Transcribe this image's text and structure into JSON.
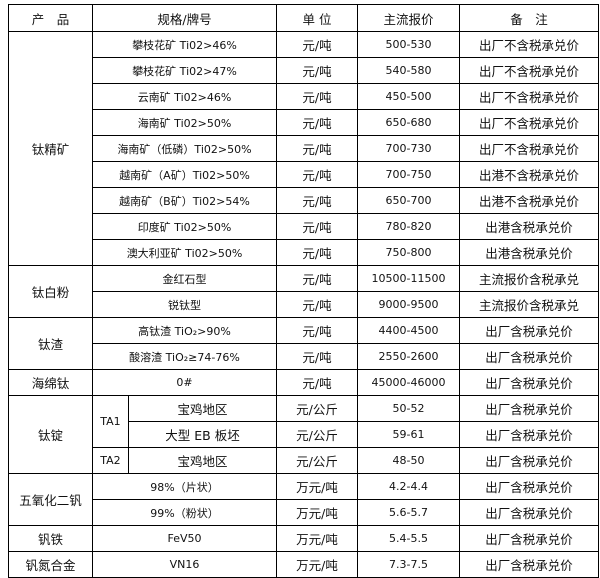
{
  "header": [
    "产　品",
    "规格/牌号",
    "单 位",
    "主流报价",
    "备　注"
  ],
  "groups": [
    {
      "product": "钛精矿",
      "rows": [
        {
          "spec": "攀枝花矿 Ti02>46%",
          "unit": "元/吨",
          "price": "500-530",
          "note": "出厂不含税承兑价"
        },
        {
          "spec": "攀枝花矿 Ti02>47%",
          "unit": "元/吨",
          "price": "540-580",
          "note": "出厂不含税承兑价"
        },
        {
          "spec": "云南矿 Ti02>46%",
          "unit": "元/吨",
          "price": "450-500",
          "note": "出厂不含税承兑价"
        },
        {
          "spec": "海南矿 Ti02>50%",
          "unit": "元/吨",
          "price": "650-680",
          "note": "出厂不含税承兑价"
        },
        {
          "spec": "海南矿（低磷）Ti02>50%",
          "unit": "元/吨",
          "price": "700-730",
          "note": "出厂不含税承兑价"
        },
        {
          "spec": "越南矿（A矿）Ti02>50%",
          "unit": "元/吨",
          "price": "700-750",
          "note": "出港不含税承兑价"
        },
        {
          "spec": "越南矿（B矿）Ti02>54%",
          "unit": "元/吨",
          "price": "650-700",
          "note": "出港不含税承兑价"
        },
        {
          "spec": "印度矿 Ti02>50%",
          "unit": "元/吨",
          "price": "780-820",
          "note": "出港含税承兑价"
        },
        {
          "spec": "澳大利亚矿 Ti02>50%",
          "unit": "元/吨",
          "price": "750-800",
          "note": "出港含税承兑价"
        }
      ]
    },
    {
      "product": "钛白粉",
      "rows": [
        {
          "spec": "金红石型",
          "unit": "元/吨",
          "price": "10500-11500",
          "note": "主流报价含税承兑"
        },
        {
          "spec": "锐钛型",
          "unit": "元/吨",
          "price": "9000-9500",
          "note": "主流报价含税承兑"
        }
      ]
    },
    {
      "product": "钛渣",
      "rows": [
        {
          "spec": "高钛渣 TiO₂>90%",
          "unit": "元/吨",
          "price": "4400-4500",
          "note": "出厂含税承兑价"
        },
        {
          "spec": "酸溶渣 TiO₂≥74-76%",
          "unit": "元/吨",
          "price": "2550-2600",
          "note": "出厂含税承兑价"
        }
      ]
    },
    {
      "product": "海绵钛",
      "rows": [
        {
          "spec": "0#",
          "unit": "元/吨",
          "price": "45000-46000",
          "note": "出厂含税承兑价"
        }
      ]
    },
    {
      "product": "钛锭",
      "rows": [
        {
          "grade": "TA1",
          "spec": "宝鸡地区",
          "unit": "元/公斤",
          "price": "50-52",
          "note": "出厂含税承兑价"
        },
        {
          "grade": "TA1",
          "spec": "大型 EB 板坯",
          "unit": "元/公斤",
          "price": "59-61",
          "note": "出厂含税承兑价"
        },
        {
          "grade": "TA2",
          "spec": "宝鸡地区",
          "unit": "元/公斤",
          "price": "48-50",
          "note": "出厂含税承兑价"
        }
      ]
    },
    {
      "product": "五氧化二钒",
      "rows": [
        {
          "spec": "98%（片状）",
          "unit": "万元/吨",
          "price": "4.2-4.4",
          "note": "出厂含税承兑价"
        },
        {
          "spec": "99%（粉状）",
          "unit": "万元/吨",
          "price": "5.6-5.7",
          "note": "出厂含税承兑价"
        }
      ]
    },
    {
      "product": "钒铁",
      "rows": [
        {
          "spec": "FeV50",
          "unit": "万元/吨",
          "price": "5.4-5.5",
          "note": "出厂含税承兑价"
        }
      ]
    },
    {
      "product": "钒氮合金",
      "rows": [
        {
          "spec": "VN16",
          "unit": "万元/吨",
          "price": "7.3-7.5",
          "note": "出厂含税承兑价"
        }
      ]
    }
  ]
}
